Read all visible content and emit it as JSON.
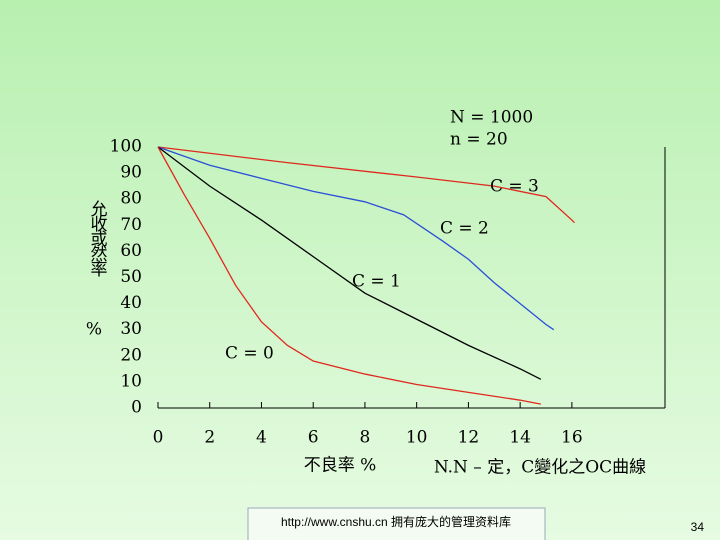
{
  "chart_data": {
    "type": "line",
    "notes": [
      "N = 1000",
      "n = 20"
    ],
    "ylabel": "允收或然率",
    "yunit": "%",
    "xlabel": "不良率 %",
    "caption": "N.N – 定，C變化之OC曲線",
    "xlim": [
      0,
      19.6
    ],
    "xticks": [
      0,
      2,
      4,
      6,
      8,
      10,
      12,
      14,
      16
    ],
    "ylim": [
      0,
      100
    ],
    "yticks": [
      0,
      10,
      20,
      30,
      40,
      50,
      60,
      70,
      80,
      90,
      100
    ],
    "series": [
      {
        "name": "C = 3",
        "color": "#e0281e",
        "x": [
          0,
          5,
          10,
          13,
          15,
          16,
          16.1
        ],
        "values": [
          100,
          94,
          88.5,
          85,
          81,
          72,
          71
        ]
      },
      {
        "name": "C = 2",
        "color": "#2a4fd8",
        "x": [
          0,
          2,
          4,
          6,
          8,
          9.5,
          11,
          12,
          13,
          14,
          15,
          15.3
        ],
        "values": [
          100,
          93,
          88,
          83,
          79,
          74,
          64,
          57,
          48,
          40,
          32,
          30
        ]
      },
      {
        "name": "C = 1",
        "color": "#000000",
        "x": [
          0,
          2,
          4,
          6,
          8,
          10,
          12,
          14,
          14.8
        ],
        "values": [
          100,
          85,
          72,
          58,
          44,
          34,
          24,
          15,
          11
        ]
      },
      {
        "name": "C = 0",
        "color": "#e0281e",
        "x": [
          0,
          1,
          2,
          3,
          4,
          5,
          6,
          8,
          10,
          12,
          14,
          14.8
        ],
        "values": [
          100,
          82,
          65,
          47,
          33,
          24,
          18,
          13,
          9,
          6,
          3,
          1.5
        ]
      }
    ]
  },
  "footer": {
    "url": "http://www.cnshu.cn 拥有庞大的管理资料库",
    "page": "34"
  }
}
